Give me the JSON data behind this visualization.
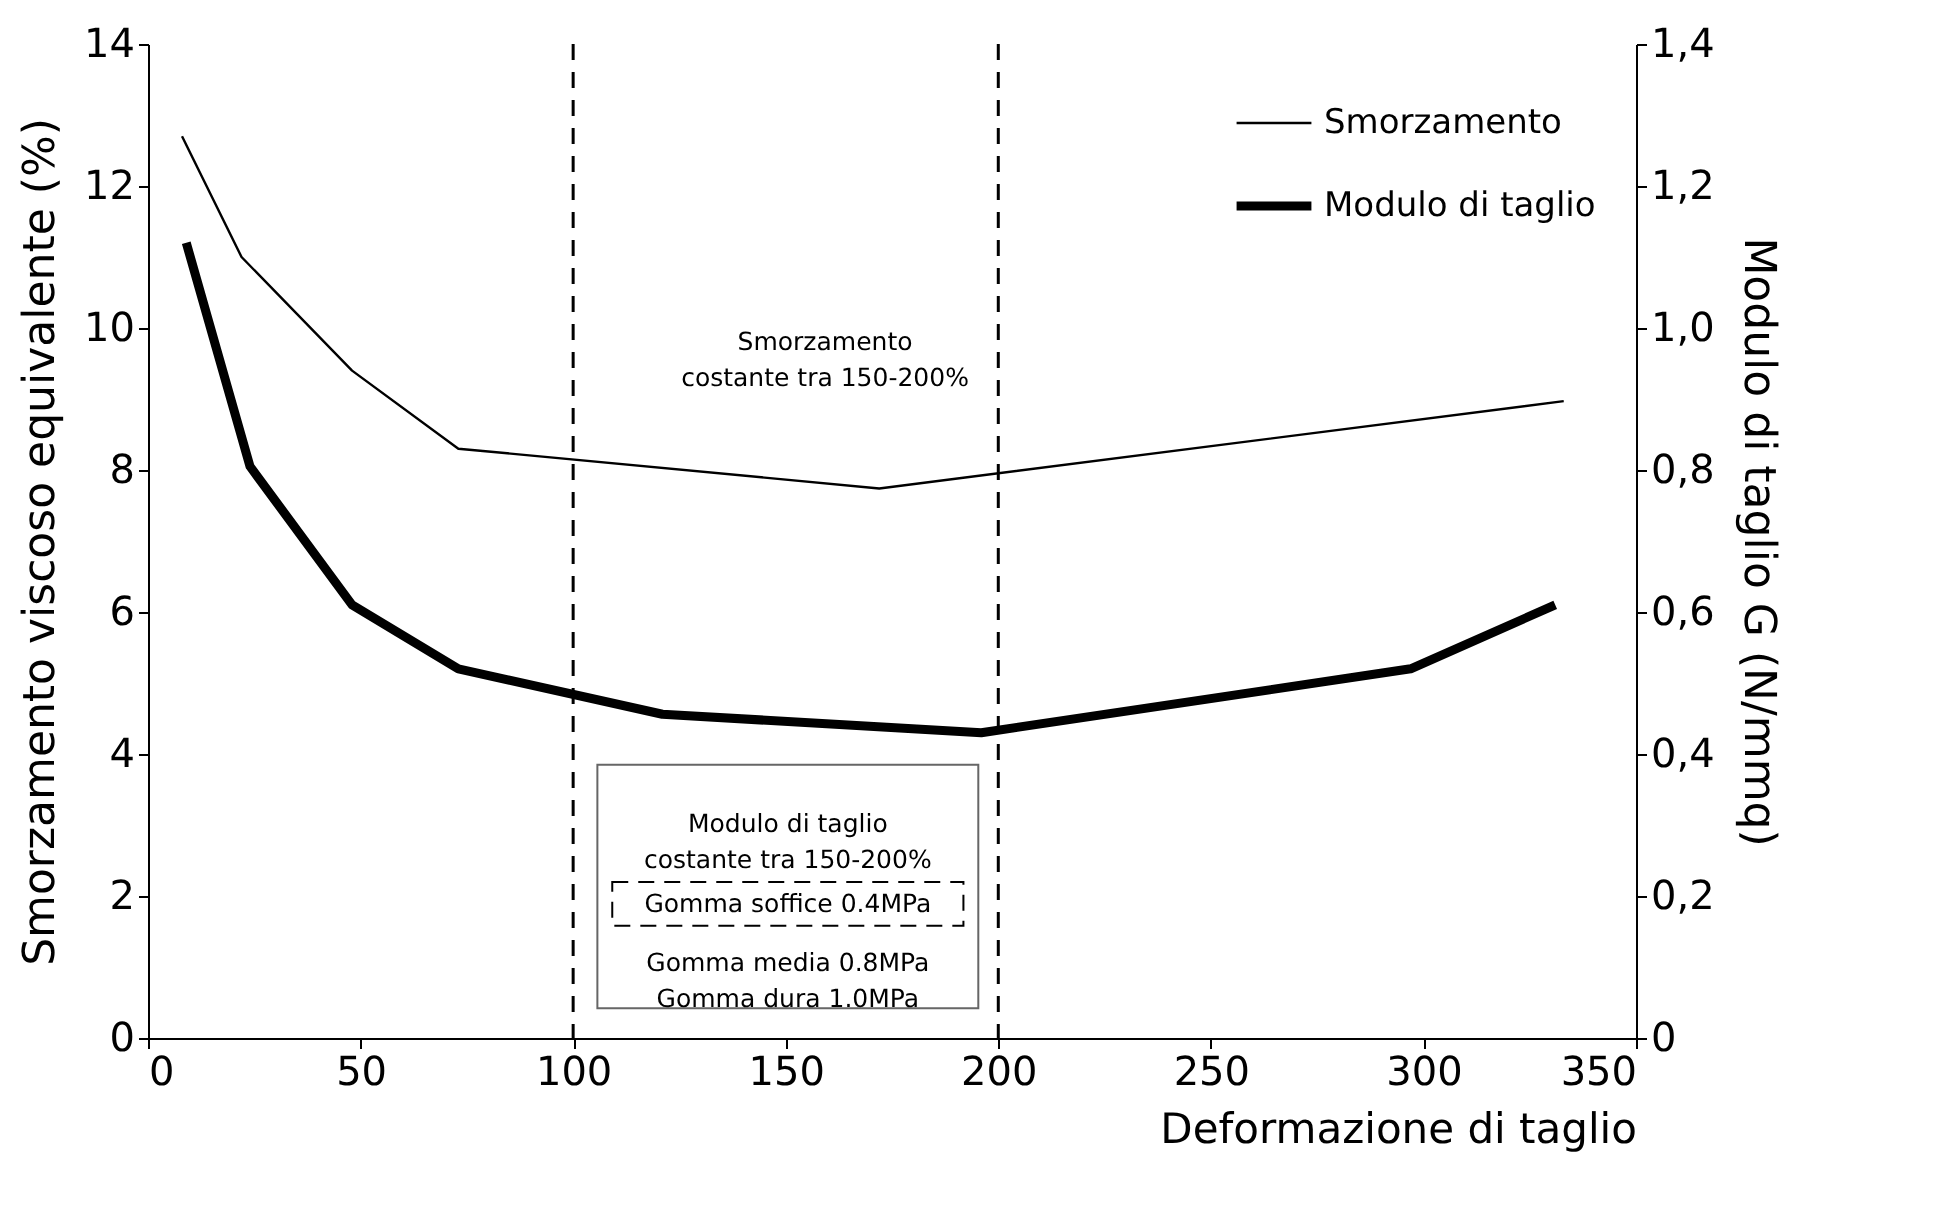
{
  "chart_data": {
    "type": "line",
    "xlabel": "Deformazione di taglio",
    "ylabel": "Smorzamento viscoso equivalente (%)",
    "y2label": "Modulo di taglio G (N/mmq)",
    "series": [
      {
        "name": "Smorzamento",
        "color": "#000000",
        "x": [
          8,
          22,
          48,
          73,
          172,
          333
        ],
        "values": [
          12.7,
          11.0,
          9.4,
          8.3,
          7.74,
          8.97
        ]
      },
      {
        "name": "Modulo di taglio",
        "color": "#000000",
        "axis": "y2",
        "x": [
          9,
          24,
          48,
          73,
          121,
          196,
          297,
          331
        ],
        "values": [
          1.12,
          0.805,
          0.61,
          0.52,
          0.456,
          0.43,
          0.52,
          0.61
        ]
      }
    ],
    "xlim": [
      0,
      350
    ],
    "xticks": [
      0,
      50,
      100,
      150,
      200,
      250,
      300,
      350
    ],
    "ylim": [
      0,
      14
    ],
    "yticks": [
      0,
      2,
      4,
      6,
      8,
      10,
      12,
      14
    ],
    "y2lim": [
      0,
      1.4
    ],
    "y2ticks": [
      0,
      {
        "value": 0.2,
        "label": "0,2"
      },
      {
        "value": 0.4,
        "label": "0,4"
      },
      {
        "value": 0.6,
        "label": "0,6"
      },
      {
        "value": 0.8,
        "label": "0,8"
      },
      {
        "value": 1.0,
        "label": "1,0"
      },
      {
        "value": 1.2,
        "label": "1,2"
      },
      {
        "value": 1.4,
        "label": "1,4"
      }
    ],
    "ref_lines": [
      {
        "axis": "x",
        "value": 100,
        "line_style": "dashed"
      },
      {
        "axis": "x",
        "value": 200,
        "line_style": "dashed"
      }
    ],
    "annotations": [
      "Smorzamento\ncostante tra 150-200%",
      "Modulo di taglio\ncostante tra 150-200%",
      "Gomma soffice 0.4MPa",
      "Gomma media 0.8MPa\nGomma dura 1.0MPa"
    ],
    "grid": false,
    "legend": "top right",
    "marker": "none",
    "line_style": "solid"
  }
}
